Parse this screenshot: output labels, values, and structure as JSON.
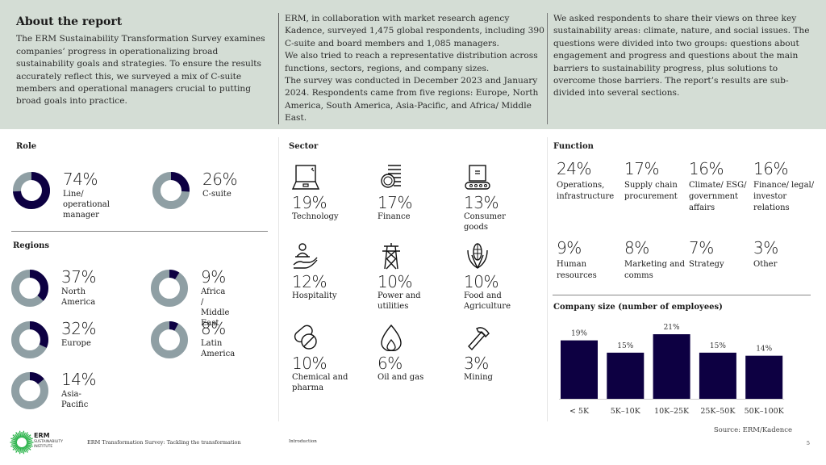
{
  "header": {
    "title": "About the report",
    "col1": "The ERM Sustainability Transformation Survey examines companies’ progress in operationalizing broad sustainability goals and strategies. To ensure the results accurately reflect this, we surveyed a mix of C-suite members and operational managers crucial to putting broad goals into practice.",
    "col2_p1": "ERM, in collaboration with market research agency Kadence, surveyed 1,475 global respondents, including 390 C-suite and board members and 1,085 managers.",
    "col2_p2": "We also tried to reach a representative distribution across functions, sectors, regions, and company sizes.",
    "col2_p3": "The survey was conducted in December 2023 and January 2024. Respondents came from five regions: Europe, North America, South America, Asia-Pacific, and Africa/ Middle East.",
    "col3": "We asked respondents to share their views on three key sustainability areas: climate, nature, and social issues. The questions were divided into two groups: questions about engagement and progress and questions about the main barriers to sustainability progress, plus solutions to overcome those barriers. The report’s results are sub-divided into several sections."
  },
  "colors": {
    "accent": "#0d0042",
    "ring": "#8f9fa4",
    "header_bg": "#d4ddd5",
    "logo": "#2bb34a"
  },
  "role": {
    "title": "Role",
    "items": [
      {
        "pct": "74%",
        "value": 74,
        "label": "Line/ operational manager"
      },
      {
        "pct": "26%",
        "value": 26,
        "label": "C-suite"
      }
    ]
  },
  "regions": {
    "title": "Regions",
    "items": [
      {
        "pct": "37%",
        "value": 37,
        "label": "North America"
      },
      {
        "pct": "9%",
        "value": 9,
        "label": "Africa / Middle East"
      },
      {
        "pct": "32%",
        "value": 32,
        "label": "Europe"
      },
      {
        "pct": "8%",
        "value": 8,
        "label": "Latin America"
      },
      {
        "pct": "14%",
        "value": 14,
        "label": "Asia-Pacific"
      }
    ]
  },
  "sector": {
    "title": "Sector",
    "items": [
      {
        "pct": "19%",
        "label": "Technology",
        "icon": "laptop-icon"
      },
      {
        "pct": "17%",
        "label": "Finance",
        "icon": "coins-icon"
      },
      {
        "pct": "13%",
        "label": "Consumer goods",
        "icon": "conveyor-box-icon"
      },
      {
        "pct": "12%",
        "label": "Hospitality",
        "icon": "hand-person-icon"
      },
      {
        "pct": "10%",
        "label": "Power and utilities",
        "icon": "power-tower-icon"
      },
      {
        "pct": "10%",
        "label": "Food and Agriculture",
        "icon": "corn-icon"
      },
      {
        "pct": "10%",
        "label": "Chemical and pharma",
        "icon": "pills-icon"
      },
      {
        "pct": "6%",
        "label": "Oil and gas",
        "icon": "flame-icon"
      },
      {
        "pct": "3%",
        "label": "Mining",
        "icon": "hammer-icon"
      }
    ]
  },
  "function": {
    "title": "Function",
    "items": [
      {
        "pct": "24%",
        "label": "Operations, infrastructure"
      },
      {
        "pct": "17%",
        "label": "Supply chain procurement"
      },
      {
        "pct": "16%",
        "label": "Climate/ ESG/ government affairs"
      },
      {
        "pct": "16%",
        "label": "Finance/ legal/ investor relations"
      },
      {
        "pct": "9%",
        "label": "Human resources"
      },
      {
        "pct": "8%",
        "label": "Marketing and comms"
      },
      {
        "pct": "7%",
        "label": "Strategy"
      },
      {
        "pct": "3%",
        "label": "Other"
      }
    ]
  },
  "chart_data": {
    "type": "bar",
    "title": "Company size (number of employees)",
    "categories": [
      "< 5K",
      "5K–10K",
      "10K–25K",
      "25K–50K",
      "50K–100K"
    ],
    "values": [
      19,
      15,
      21,
      15,
      14
    ],
    "data_labels": [
      "19%",
      "15%",
      "21%",
      "15%",
      "14%"
    ],
    "xlabel": "",
    "ylabel": "",
    "ylim": [
      0,
      21
    ],
    "grid": false,
    "legend": "none"
  },
  "footer": {
    "logo_line1": "ERM",
    "logo_line2": "SUSTAINABILITY",
    "logo_line3": "INSTITUTE",
    "doc_title": "ERM Transformation Survey: Tackling the transformation",
    "section": "Introduction",
    "source": "Source: ERM/Kadence",
    "page": "5"
  }
}
